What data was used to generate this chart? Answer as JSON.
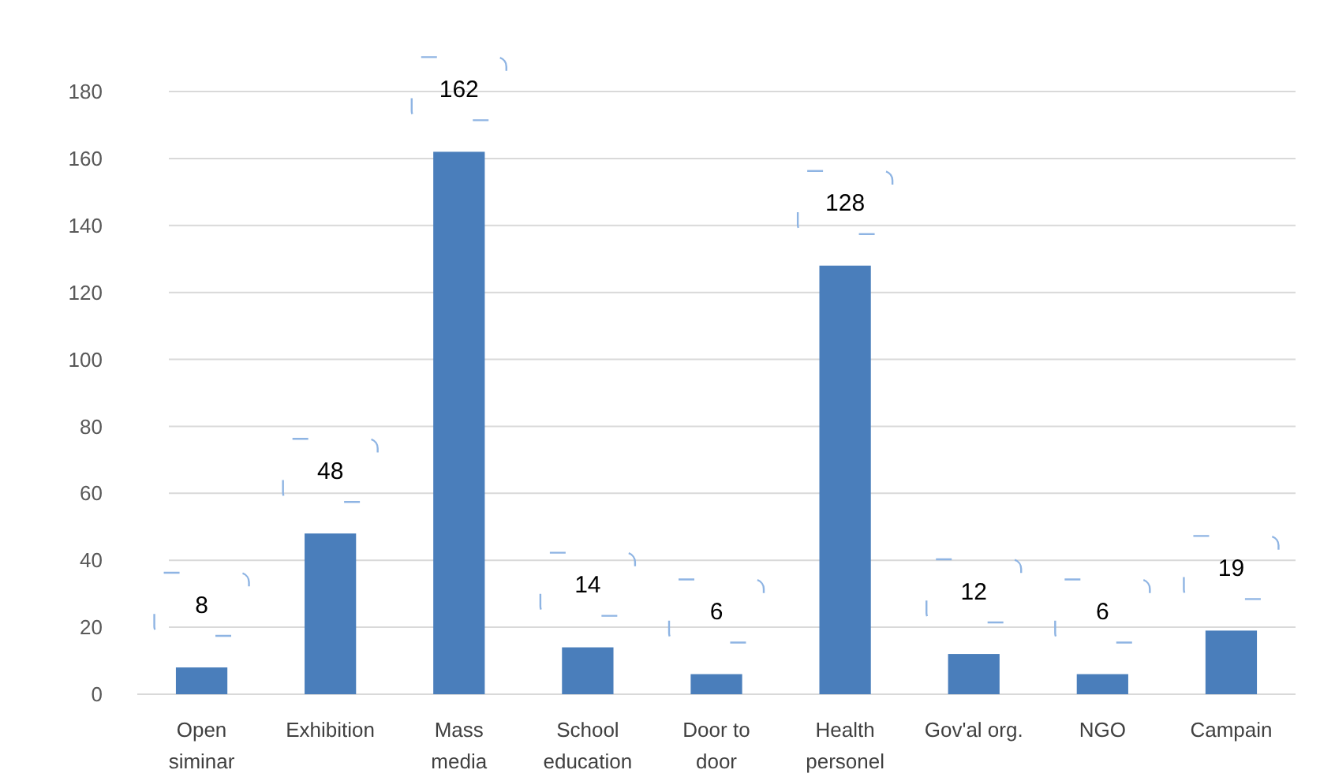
{
  "chart_data": {
    "type": "bar",
    "categories": [
      "Open siminar",
      "Exhibition",
      "Mass media",
      "School education",
      "Door to door",
      "Health personel",
      "Gov'al org.",
      "NGO",
      "Campain"
    ],
    "values": [
      8,
      48,
      162,
      14,
      6,
      128,
      12,
      6,
      19
    ],
    "color": "#4a7ebb",
    "ylim": [
      0,
      180
    ],
    "yticks": [
      0,
      20,
      40,
      60,
      80,
      100,
      120,
      140,
      160,
      180
    ],
    "grid": "y",
    "data_labels": true
  }
}
